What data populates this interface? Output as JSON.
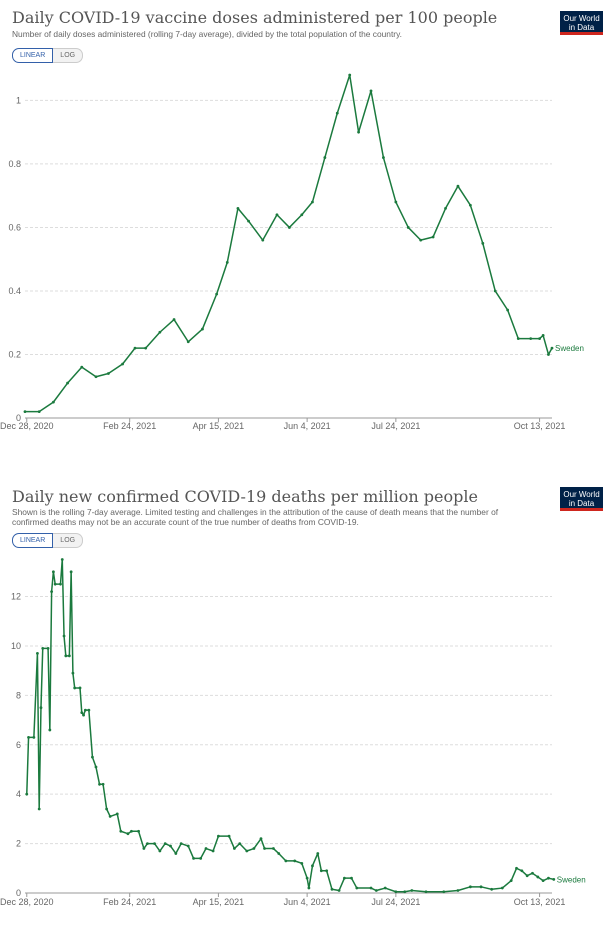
{
  "chart_data": [
    {
      "type": "line",
      "title": "Daily COVID-19 vaccine doses administered per 100 people",
      "subtitle": "Number of daily doses administered (rolling 7-day average), divided by the total population of the country.",
      "scale_options": [
        "LINEAR",
        "LOG"
      ],
      "active_scale": "LINEAR",
      "logo": [
        "Our World",
        "in Data"
      ],
      "x_ticks": [
        "Dec 28, 2020",
        "Feb 24, 2021",
        "Apr 15, 2021",
        "Jun 4, 2021",
        "Jul 24, 2021",
        "Oct 13, 2021"
      ],
      "y_ticks": [
        "0",
        "0.2",
        "0.4",
        "0.6",
        "0.8",
        "1"
      ],
      "ylim": [
        0,
        1.08
      ],
      "grid": true,
      "series": [
        {
          "name": "Sweden",
          "color": "#1b7a3e",
          "points": [
            [
              "Dec 27, 2020",
              0.02
            ],
            [
              "Jan 4, 2021",
              0.02
            ],
            [
              "Jan 12, 2021",
              0.05
            ],
            [
              "Jan 20, 2021",
              0.11
            ],
            [
              "Jan 28, 2021",
              0.16
            ],
            [
              "Feb 5, 2021",
              0.13
            ],
            [
              "Feb 12, 2021",
              0.14
            ],
            [
              "Feb 20, 2021",
              0.17
            ],
            [
              "Feb 27, 2021",
              0.22
            ],
            [
              "Mar 5, 2021",
              0.22
            ],
            [
              "Mar 13, 2021",
              0.27
            ],
            [
              "Mar 21, 2021",
              0.31
            ],
            [
              "Mar 29, 2021",
              0.24
            ],
            [
              "Apr 6, 2021",
              0.28
            ],
            [
              "Apr 14, 2021",
              0.39
            ],
            [
              "Apr 20, 2021",
              0.49
            ],
            [
              "Apr 26, 2021",
              0.66
            ],
            [
              "May 2, 2021",
              0.62
            ],
            [
              "May 10, 2021",
              0.56
            ],
            [
              "May 18, 2021",
              0.64
            ],
            [
              "May 25, 2021",
              0.6
            ],
            [
              "Jun 1, 2021",
              0.64
            ],
            [
              "Jun 7, 2021",
              0.68
            ],
            [
              "Jun 14, 2021",
              0.82
            ],
            [
              "Jun 21, 2021",
              0.96
            ],
            [
              "Jun 28, 2021",
              1.08
            ],
            [
              "Jul 3, 2021",
              0.9
            ],
            [
              "Jul 10, 2021",
              1.03
            ],
            [
              "Jul 17, 2021",
              0.82
            ],
            [
              "Jul 24, 2021",
              0.68
            ],
            [
              "Jul 31, 2021",
              0.6
            ],
            [
              "Aug 7, 2021",
              0.56
            ],
            [
              "Aug 14, 2021",
              0.57
            ],
            [
              "Aug 21, 2021",
              0.66
            ],
            [
              "Aug 28, 2021",
              0.73
            ],
            [
              "Sep 4, 2021",
              0.67
            ],
            [
              "Sep 11, 2021",
              0.55
            ],
            [
              "Sep 18, 2021",
              0.4
            ],
            [
              "Sep 25, 2021",
              0.34
            ],
            [
              "Oct 1, 2021",
              0.25
            ],
            [
              "Oct 8, 2021",
              0.25
            ],
            [
              "Oct 13, 2021",
              0.25
            ],
            [
              "Oct 15, 2021",
              0.26
            ],
            [
              "Oct 18, 2021",
              0.2
            ],
            [
              "Oct 20, 2021",
              0.22
            ]
          ]
        }
      ]
    },
    {
      "type": "line",
      "title": "Daily new confirmed COVID-19 deaths per million people",
      "subtitle": "Shown is the rolling 7-day average. Limited testing and challenges in the attribution of the cause of death means that the number of confirmed deaths may not be an accurate count of the true number of deaths from COVID-19.",
      "scale_options": [
        "LINEAR",
        "LOG"
      ],
      "active_scale": "LINEAR",
      "logo": [
        "Our World",
        "in Data"
      ],
      "x_ticks": [
        "Dec 28, 2020",
        "Feb 24, 2021",
        "Apr 15, 2021",
        "Jun 4, 2021",
        "Jul 24, 2021",
        "Oct 13, 2021"
      ],
      "y_ticks": [
        "0",
        "2",
        "4",
        "6",
        "8",
        "10",
        "12"
      ],
      "ylim": [
        0,
        13.6
      ],
      "grid": true,
      "series": [
        {
          "name": "Sweden",
          "color": "#1b7a3e",
          "points": [
            [
              "Dec 28, 2020",
              4.0
            ],
            [
              "Dec 29, 2020",
              6.3
            ],
            [
              "Jan 1, 2021",
              6.3
            ],
            [
              "Jan 3, 2021",
              9.7
            ],
            [
              "Jan 4, 2021",
              3.4
            ],
            [
              "Jan 5, 2021",
              7.5
            ],
            [
              "Jan 6, 2021",
              9.9
            ],
            [
              "Jan 9, 2021",
              9.9
            ],
            [
              "Jan 10, 2021",
              6.6
            ],
            [
              "Jan 11, 2021",
              12.2
            ],
            [
              "Jan 12, 2021",
              13.0
            ],
            [
              "Jan 13, 2021",
              12.5
            ],
            [
              "Jan 16, 2021",
              12.5
            ],
            [
              "Jan 17, 2021",
              13.5
            ],
            [
              "Jan 18, 2021",
              10.4
            ],
            [
              "Jan 19, 2021",
              9.6
            ],
            [
              "Jan 21, 2021",
              9.6
            ],
            [
              "Jan 22, 2021",
              13.0
            ],
            [
              "Jan 23, 2021",
              8.9
            ],
            [
              "Jan 24, 2021",
              8.3
            ],
            [
              "Jan 27, 2021",
              8.3
            ],
            [
              "Jan 28, 2021",
              7.3
            ],
            [
              "Jan 29, 2021",
              7.2
            ],
            [
              "Jan 30, 2021",
              7.4
            ],
            [
              "Feb 1, 2021",
              7.4
            ],
            [
              "Feb 3, 2021",
              5.5
            ],
            [
              "Feb 5, 2021",
              5.1
            ],
            [
              "Feb 7, 2021",
              4.4
            ],
            [
              "Feb 9, 2021",
              4.4
            ],
            [
              "Feb 11, 2021",
              3.4
            ],
            [
              "Feb 13, 2021",
              3.1
            ],
            [
              "Feb 17, 2021",
              3.2
            ],
            [
              "Feb 19, 2021",
              2.5
            ],
            [
              "Feb 23, 2021",
              2.4
            ],
            [
              "Feb 25, 2021",
              2.5
            ],
            [
              "Mar 1, 2021",
              2.5
            ],
            [
              "Mar 4, 2021",
              1.8
            ],
            [
              "Mar 6, 2021",
              2.0
            ],
            [
              "Mar 10, 2021",
              2.0
            ],
            [
              "Mar 13, 2021",
              1.7
            ],
            [
              "Mar 16, 2021",
              2.0
            ],
            [
              "Mar 19, 2021",
              1.9
            ],
            [
              "Mar 22, 2021",
              1.6
            ],
            [
              "Mar 25, 2021",
              2.0
            ],
            [
              "Mar 29, 2021",
              1.9
            ],
            [
              "Apr 1, 2021",
              1.4
            ],
            [
              "Apr 5, 2021",
              1.4
            ],
            [
              "Apr 8, 2021",
              1.8
            ],
            [
              "Apr 12, 2021",
              1.7
            ],
            [
              "Apr 15, 2021",
              2.3
            ],
            [
              "Apr 21, 2021",
              2.3
            ],
            [
              "Apr 24, 2021",
              1.8
            ],
            [
              "Apr 27, 2021",
              2.0
            ],
            [
              "May 1, 2021",
              1.7
            ],
            [
              "May 5, 2021",
              1.8
            ],
            [
              "May 9, 2021",
              2.2
            ],
            [
              "May 11, 2021",
              1.8
            ],
            [
              "May 16, 2021",
              1.8
            ],
            [
              "May 19, 2021",
              1.6
            ],
            [
              "May 23, 2021",
              1.3
            ],
            [
              "May 28, 2021",
              1.3
            ],
            [
              "Jun 1, 2021",
              1.2
            ],
            [
              "Jun 4, 2021",
              0.6
            ],
            [
              "Jun 5, 2021",
              0.2
            ],
            [
              "Jun 7, 2021",
              1.1
            ],
            [
              "Jun 10, 2021",
              1.6
            ],
            [
              "Jun 12, 2021",
              0.9
            ],
            [
              "Jun 15, 2021",
              0.9
            ],
            [
              "Jun 18, 2021",
              0.15
            ],
            [
              "Jun 22, 2021",
              0.1
            ],
            [
              "Jun 25, 2021",
              0.6
            ],
            [
              "Jun 29, 2021",
              0.6
            ],
            [
              "Jul 2, 2021",
              0.2
            ],
            [
              "Jul 10, 2021",
              0.2
            ],
            [
              "Jul 13, 2021",
              0.1
            ],
            [
              "Jul 18, 2021",
              0.2
            ],
            [
              "Jul 24, 2021",
              0.05
            ],
            [
              "Jul 29, 2021",
              0.05
            ],
            [
              "Aug 2, 2021",
              0.1
            ],
            [
              "Aug 10, 2021",
              0.05
            ],
            [
              "Aug 20, 2021",
              0.05
            ],
            [
              "Aug 28, 2021",
              0.1
            ],
            [
              "Sep 4, 2021",
              0.25
            ],
            [
              "Sep 10, 2021",
              0.25
            ],
            [
              "Sep 16, 2021",
              0.15
            ],
            [
              "Sep 22, 2021",
              0.2
            ],
            [
              "Sep 27, 2021",
              0.5
            ],
            [
              "Sep 30, 2021",
              1.0
            ],
            [
              "Oct 3, 2021",
              0.9
            ],
            [
              "Oct 6, 2021",
              0.7
            ],
            [
              "Oct 9, 2021",
              0.8
            ],
            [
              "Oct 12, 2021",
              0.65
            ],
            [
              "Oct 15, 2021",
              0.5
            ],
            [
              "Oct 18, 2021",
              0.6
            ],
            [
              "Oct 21, 2021",
              0.55
            ]
          ]
        }
      ]
    }
  ]
}
